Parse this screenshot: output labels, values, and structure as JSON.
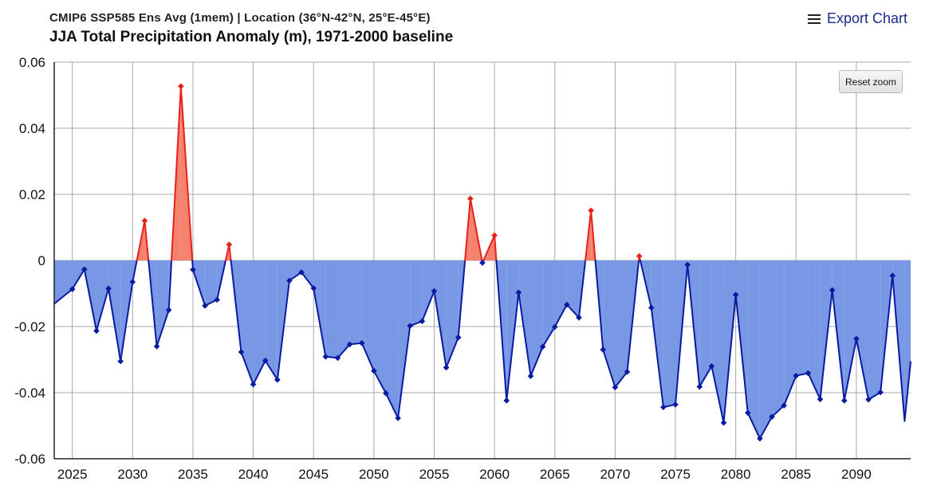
{
  "header": {
    "subtitle": "CMIP6 SSP585 Ens Avg (1mem) | Location (36°N-42°N, 25°E-45°E)",
    "title": "JJA Total Precipitation Anomaly (m), 1971-2000 baseline"
  },
  "toolbar": {
    "export_label": "Export Chart",
    "reset_label": "Reset zoom"
  },
  "colors": {
    "positive_fill": "#f4826e",
    "positive_line": "#e8201c",
    "negative_fill": "#7898e6",
    "negative_line": "#0a1aa0",
    "grid": "#a8a8a8"
  },
  "chart_data": {
    "type": "area",
    "title": "JJA Total Precipitation Anomaly (m), 1971-2000 baseline",
    "xlabel": "",
    "ylabel": "",
    "xlim": [
      2023.5,
      2094.5
    ],
    "ylim": [
      -0.06,
      0.06
    ],
    "threshold": 0,
    "x_ticks": [
      2025,
      2030,
      2035,
      2040,
      2045,
      2050,
      2055,
      2060,
      2065,
      2070,
      2075,
      2080,
      2085,
      2090
    ],
    "y_ticks": [
      0.06,
      0.04,
      0.02,
      0,
      -0.02,
      -0.04,
      -0.06
    ],
    "y_tick_labels": [
      "0.06",
      "0.04",
      "0.02",
      "0",
      "-0.02",
      "-0.04",
      "-0.06"
    ],
    "x": [
      2023.5,
      2025,
      2026,
      2027,
      2028,
      2029,
      2030,
      2031,
      2032,
      2033,
      2034,
      2035,
      2036,
      2037,
      2038,
      2039,
      2040,
      2041,
      2042,
      2043,
      2044,
      2045,
      2046,
      2047,
      2048,
      2049,
      2050,
      2051,
      2052,
      2053,
      2054,
      2055,
      2056,
      2057,
      2058,
      2059,
      2060,
      2061,
      2062,
      2063,
      2064,
      2065,
      2066,
      2067,
      2068,
      2069,
      2070,
      2071,
      2072,
      2073,
      2074,
      2075,
      2076,
      2077,
      2078,
      2079,
      2080,
      2081,
      2082,
      2083,
      2084,
      2085,
      2086,
      2087,
      2088,
      2089,
      2090,
      2091,
      2092,
      2093,
      2094,
      2094.5
    ],
    "values": [
      -0.0131,
      -0.0087,
      -0.0027,
      -0.0213,
      -0.0085,
      -0.0305,
      -0.0065,
      0.012,
      -0.026,
      -0.015,
      0.0527,
      -0.0028,
      -0.0137,
      -0.0119,
      0.0048,
      -0.0277,
      -0.0375,
      -0.0303,
      -0.0361,
      -0.0061,
      -0.0036,
      -0.0084,
      -0.0291,
      -0.0295,
      -0.0254,
      -0.025,
      -0.0334,
      -0.0402,
      -0.0477,
      -0.0198,
      -0.0184,
      -0.0093,
      -0.0324,
      -0.0233,
      0.0187,
      -0.0007,
      0.0076,
      -0.0424,
      -0.0097,
      -0.035,
      -0.0261,
      -0.0201,
      -0.0134,
      -0.0173,
      0.0151,
      -0.027,
      -0.0384,
      -0.0337,
      0.0013,
      -0.0143,
      -0.0444,
      -0.0436,
      -0.0013,
      -0.0382,
      -0.032,
      -0.0491,
      -0.0104,
      -0.0461,
      -0.0539,
      -0.0473,
      -0.0439,
      -0.0349,
      -0.0341,
      -0.042,
      -0.009,
      -0.0424,
      -0.0237,
      -0.0421,
      -0.0399,
      -0.0046,
      -0.0486,
      -0.0307
    ]
  }
}
